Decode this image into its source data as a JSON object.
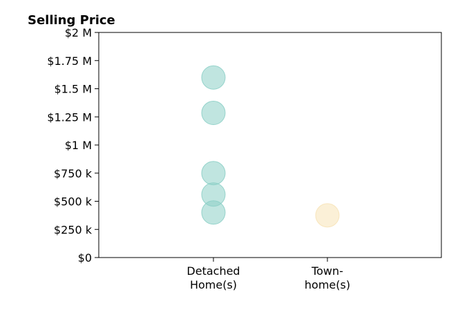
{
  "chart_data": {
    "type": "scatter",
    "title": "Selling Price",
    "xlabel": "",
    "ylabel": "",
    "categories": [
      [
        "Detached",
        "Home(s)"
      ],
      [
        "Town-",
        "home(s)"
      ]
    ],
    "y_ticks": [
      "$0",
      "$250 k",
      "$500 k",
      "$750 k",
      "$1 M",
      "$1.25 M",
      "$1.5 M",
      "$1.75 M",
      "$2 M"
    ],
    "y_tick_values": [
      0,
      250000,
      500000,
      750000,
      1000000,
      1250000,
      1500000,
      1750000,
      2000000
    ],
    "ylim": [
      0,
      2000000
    ],
    "series": [
      {
        "category": 0,
        "color": "#8ccfc6",
        "values": [
          1600000,
          1285000,
          750000,
          560000,
          400000
        ]
      },
      {
        "category": 1,
        "color": "#f7e3b7",
        "values": [
          375000
        ]
      }
    ],
    "grid": false,
    "legend": "none"
  }
}
